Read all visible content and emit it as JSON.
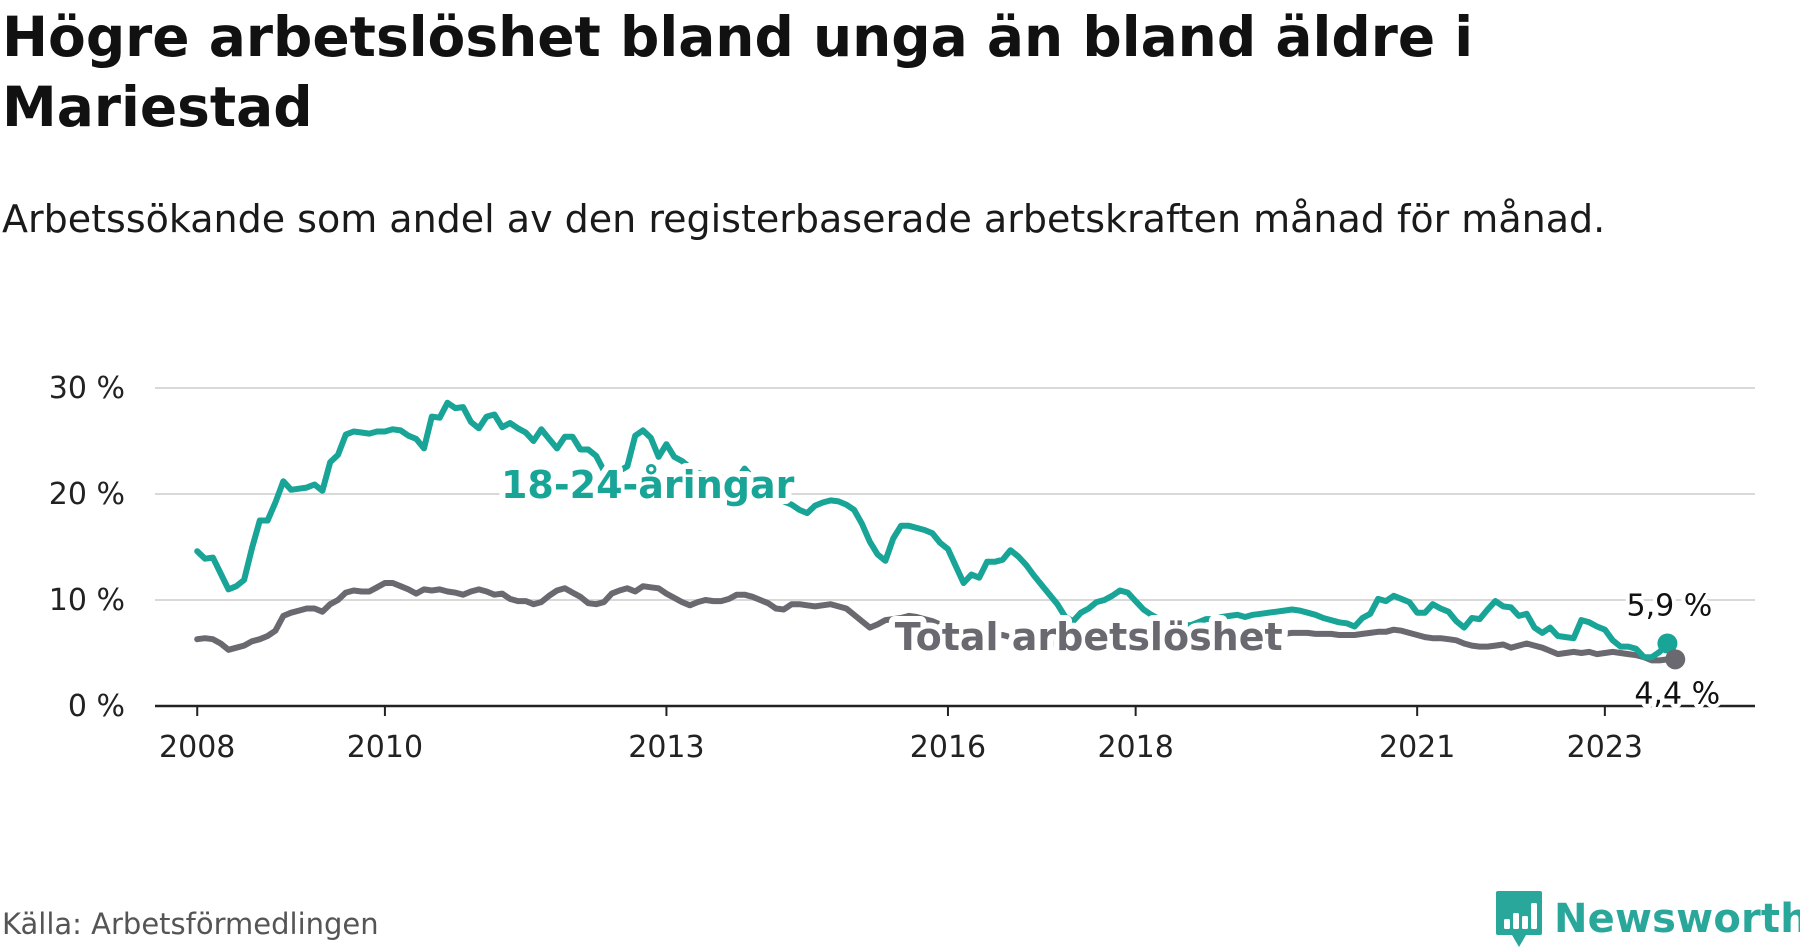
{
  "title": "Högre arbetslöshet bland unga än bland äldre i Mariestad",
  "subtitle": "Arbetssökande som andel av den registerbaserade arbetskraften månad för månad.",
  "source": "Källa: Arbetsförmedlingen",
  "logo": {
    "text": "Newsworthy",
    "icon": "bar-chart-badge-icon"
  },
  "colors": {
    "youth": "#18a497",
    "total": "#6b6970",
    "grid": "#d9d9d9",
    "axis": "#222222",
    "brand": "#2aa79b"
  },
  "chart_data": {
    "type": "line",
    "title": "Högre arbetslöshet bland unga än bland äldre i Mariestad",
    "xlabel": "",
    "ylabel": "",
    "ylim": [
      0,
      30
    ],
    "xlim": [
      2007.55,
      2024.6
    ],
    "y_ticks": [
      {
        "value": 0,
        "label": "0 %"
      },
      {
        "value": 10,
        "label": "10 %"
      },
      {
        "value": 20,
        "label": "20 %"
      },
      {
        "value": 30,
        "label": "30 %"
      }
    ],
    "x_ticks": [
      {
        "value": 2008,
        "label": "2008"
      },
      {
        "value": 2010,
        "label": "2010"
      },
      {
        "value": 2013,
        "label": "2013"
      },
      {
        "value": 2016,
        "label": "2016"
      },
      {
        "value": 2018,
        "label": "2018"
      },
      {
        "value": 2021,
        "label": "2021"
      },
      {
        "value": 2023,
        "label": "2023"
      }
    ],
    "grid": true,
    "x_start": 2008.0,
    "x_step_months": 1,
    "series": [
      {
        "name": "18-24-åringar",
        "color": "#18a497",
        "end_label": "5,9 %",
        "values": [
          14.6,
          13.9,
          14.0,
          12.5,
          11.0,
          11.3,
          11.9,
          14.9,
          17.5,
          17.5,
          19.2,
          21.2,
          20.4,
          20.5,
          20.6,
          20.9,
          20.3,
          23.0,
          23.7,
          25.6,
          25.9,
          25.8,
          25.7,
          25.9,
          25.9,
          26.1,
          26.0,
          25.5,
          25.2,
          24.3,
          27.3,
          27.2,
          28.6,
          28.1,
          28.2,
          26.8,
          26.2,
          27.3,
          27.5,
          26.3,
          26.7,
          26.2,
          25.8,
          25.0,
          26.1,
          25.2,
          24.3,
          25.4,
          25.4,
          24.2,
          24.2,
          23.6,
          22.2,
          21.1,
          22.2,
          22.6,
          25.5,
          26.0,
          25.3,
          23.5,
          24.7,
          23.5,
          23.1,
          22.5,
          22.0,
          21.8,
          21.6,
          21.5,
          21.6,
          21.3,
          22.4,
          21.5,
          20.3,
          20.0,
          19.6,
          19.3,
          19.0,
          18.5,
          18.2,
          18.9,
          19.2,
          19.4,
          19.3,
          19.0,
          18.5,
          17.2,
          15.5,
          14.3,
          13.7,
          15.8,
          17.0,
          17.0,
          16.8,
          16.6,
          16.3,
          15.4,
          14.8,
          13.2,
          11.6,
          12.4,
          12.1,
          13.6,
          13.6,
          13.8,
          14.7,
          14.1,
          13.3,
          12.3,
          11.4,
          10.5,
          9.6,
          8.4,
          8.0,
          8.8,
          9.2,
          9.8,
          10.0,
          10.4,
          10.9,
          10.7,
          9.9,
          9.1,
          8.6,
          8.2,
          8.0,
          7.8,
          7.7,
          7.6,
          7.9,
          8.2,
          8.2,
          8.4,
          8.5,
          8.6,
          8.4,
          8.6,
          8.7,
          8.8,
          8.9,
          9.0,
          9.1,
          9.0,
          8.8,
          8.6,
          8.3,
          8.1,
          7.9,
          7.8,
          7.5,
          8.3,
          8.7,
          10.1,
          9.9,
          10.4,
          10.1,
          9.8,
          8.8,
          8.8,
          9.6,
          9.2,
          8.9,
          8.0,
          7.4,
          8.3,
          8.2,
          9.1,
          9.9,
          9.4,
          9.3,
          8.5,
          8.7,
          7.4,
          6.9,
          7.4,
          6.6,
          6.5,
          6.4,
          8.1,
          7.9,
          7.5,
          7.2,
          6.2,
          5.6,
          5.6,
          5.4,
          4.6,
          4.6,
          5.1,
          5.9
        ]
      },
      {
        "name": "Total arbetslöshet",
        "color": "#6b6970",
        "end_label": "4,4 %",
        "values": [
          6.3,
          6.4,
          6.3,
          5.9,
          5.3,
          5.5,
          5.7,
          6.1,
          6.3,
          6.6,
          7.1,
          8.5,
          8.8,
          9.0,
          9.2,
          9.2,
          8.9,
          9.6,
          10.0,
          10.7,
          10.9,
          10.8,
          10.8,
          11.2,
          11.6,
          11.6,
          11.3,
          11.0,
          10.6,
          11.0,
          10.9,
          11.0,
          10.8,
          10.7,
          10.5,
          10.8,
          11.0,
          10.8,
          10.5,
          10.6,
          10.1,
          9.9,
          9.9,
          9.6,
          9.8,
          10.4,
          10.9,
          11.1,
          10.7,
          10.3,
          9.7,
          9.6,
          9.8,
          10.6,
          10.9,
          11.1,
          10.8,
          11.3,
          11.2,
          11.1,
          10.6,
          10.2,
          9.8,
          9.5,
          9.8,
          10.0,
          9.9,
          9.9,
          10.1,
          10.5,
          10.5,
          10.3,
          10.0,
          9.7,
          9.2,
          9.1,
          9.6,
          9.6,
          9.5,
          9.4,
          9.5,
          9.6,
          9.4,
          9.2,
          8.6,
          8.0,
          7.4,
          7.7,
          8.1,
          8.2,
          8.3,
          8.5,
          8.4,
          8.2,
          8.0,
          7.7,
          7.2,
          6.9,
          6.6,
          6.7,
          6.6,
          6.5,
          6.6,
          6.7,
          6.5,
          6.3,
          6.2,
          6.2,
          6.0,
          5.9,
          5.9,
          5.9,
          5.8,
          5.8,
          5.9,
          6.0,
          6.1,
          6.2,
          6.2,
          6.0,
          5.9,
          5.8,
          5.8,
          5.7,
          5.7,
          5.6,
          5.7,
          5.7,
          5.8,
          5.9,
          6.0,
          6.1,
          6.2,
          6.3,
          6.4,
          6.5,
          6.6,
          6.7,
          6.7,
          6.8,
          6.9,
          6.9,
          6.9,
          6.8,
          6.8,
          6.8,
          6.7,
          6.7,
          6.7,
          6.8,
          6.9,
          7.0,
          7.0,
          7.2,
          7.1,
          6.9,
          6.7,
          6.5,
          6.4,
          6.4,
          6.3,
          6.2,
          5.9,
          5.7,
          5.6,
          5.6,
          5.7,
          5.8,
          5.5,
          5.7,
          5.9,
          5.7,
          5.5,
          5.2,
          4.9,
          5.0,
          5.1,
          5.0,
          5.1,
          4.9,
          5.0,
          5.1,
          5.0,
          4.9,
          4.8,
          4.6,
          4.3,
          4.3,
          4.4,
          4.4
        ]
      }
    ]
  }
}
